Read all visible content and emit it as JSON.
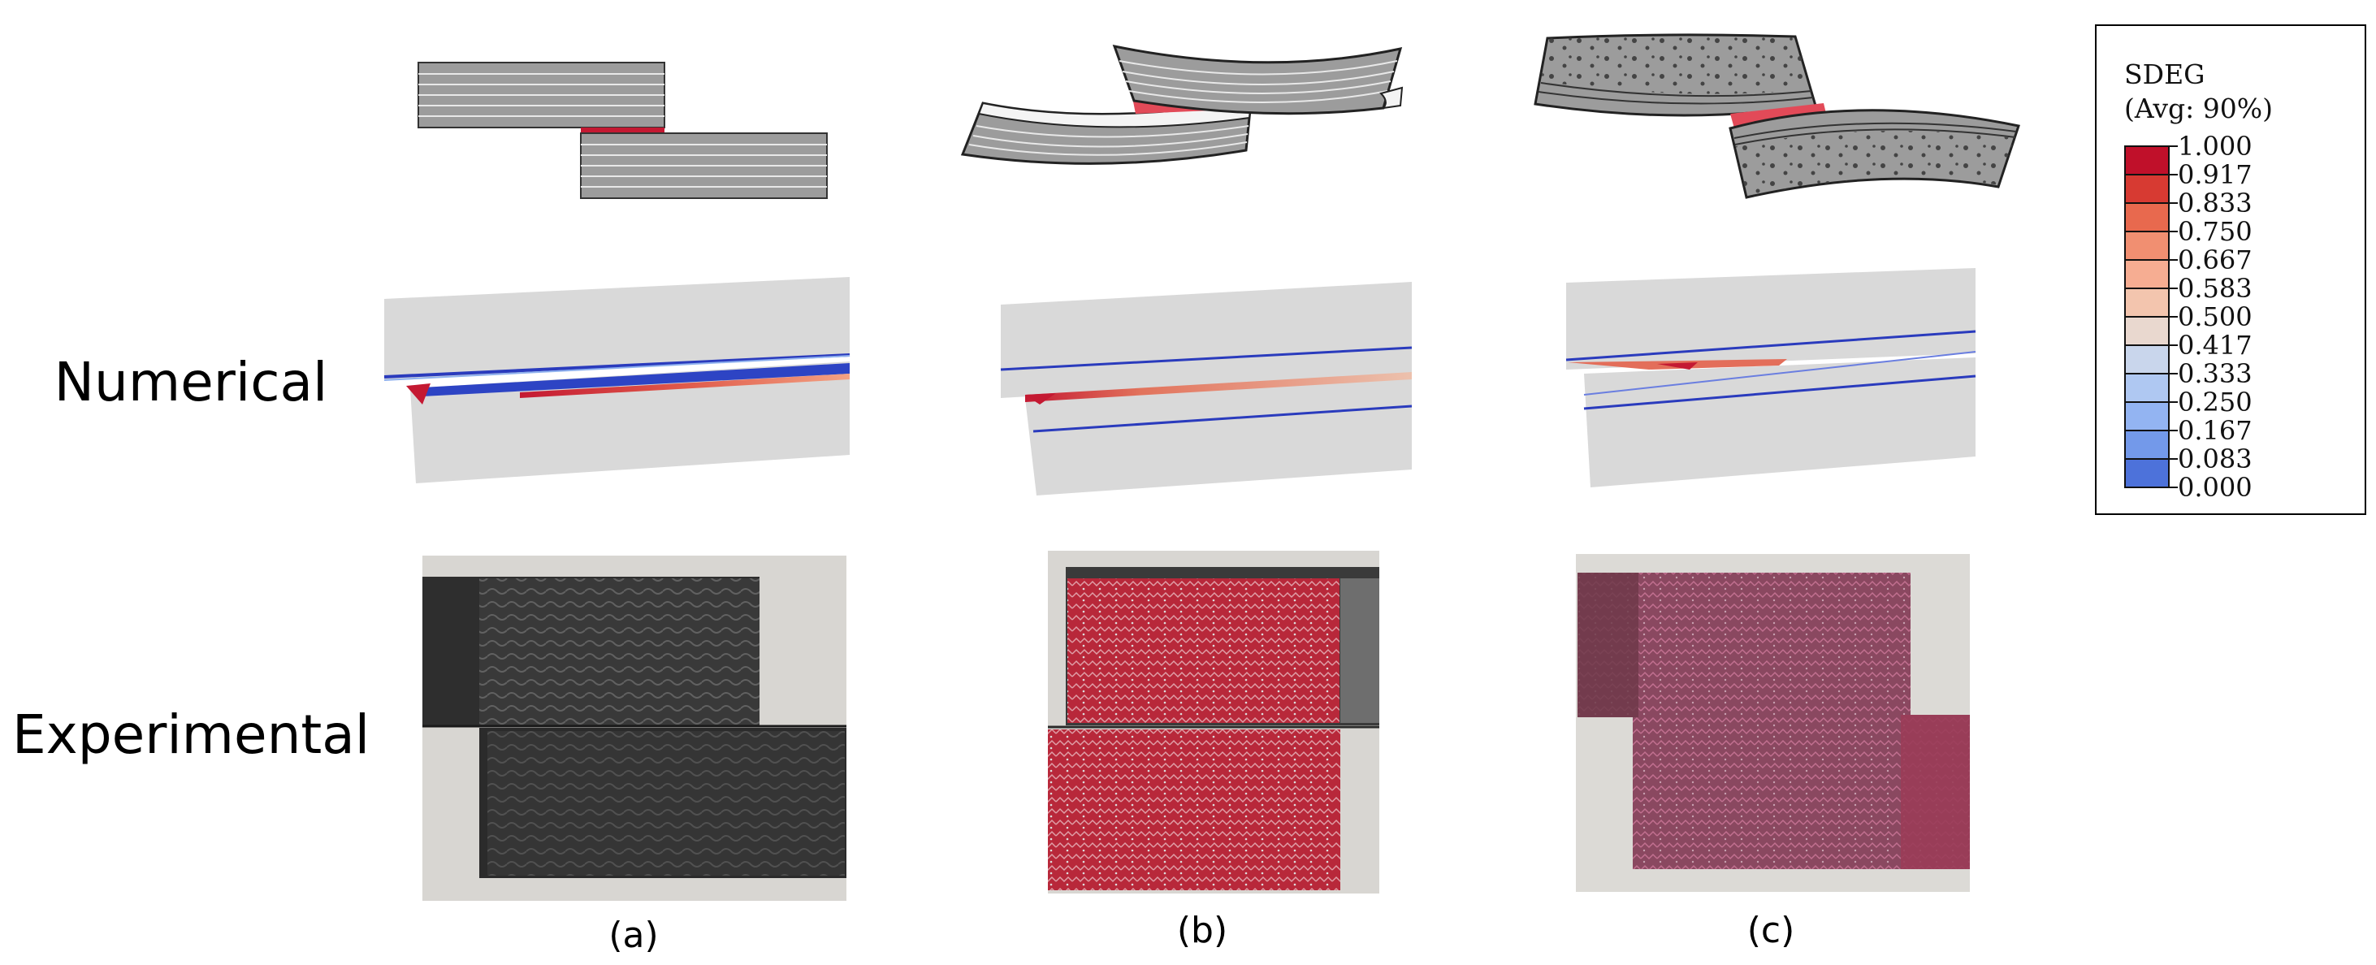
{
  "rows": {
    "numerical_label": "Numerical",
    "experimental_label": "Experimental"
  },
  "captions": [
    "(a)",
    "(b)",
    "(c)"
  ],
  "legend": {
    "title": "SDEG",
    "subtitle": "(Avg: 90%)",
    "values": [
      "1.000",
      "0.917",
      "0.833",
      "0.750",
      "0.667",
      "0.583",
      "0.500",
      "0.417",
      "0.333",
      "0.250",
      "0.167",
      "0.083",
      "0.000"
    ],
    "colors": [
      "#c0102a",
      "#d73a32",
      "#e8694e",
      "#f18f71",
      "#f6ad92",
      "#f3c5ae",
      "#e9d8cf",
      "#c9d6ec",
      "#afc8f2",
      "#93b4f2",
      "#7399ea",
      "#4d72da",
      "#2f47c2"
    ]
  },
  "colors": {
    "laminate_gray": "#9c9c9c",
    "model_gray": "#d9d9d9",
    "damage_red": "#c41932",
    "interface_blue": "#1f35b8"
  }
}
